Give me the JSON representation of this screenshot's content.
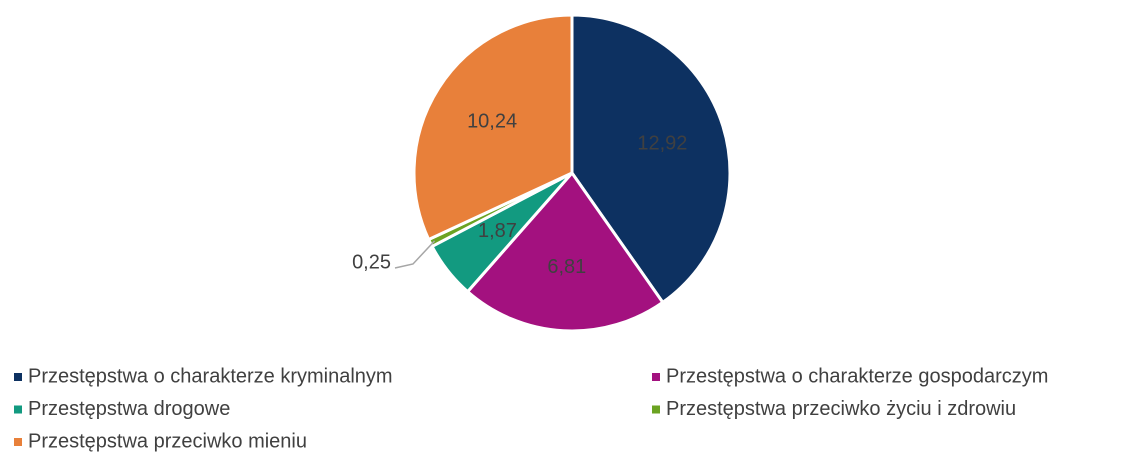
{
  "chart_data": {
    "type": "pie",
    "categories": [
      "Przestępstwa o charakterze kryminalnym",
      "Przestępstwa o charakterze gospodarczym",
      "Przestępstwa drogowe",
      "Przestępstwa przeciwko życiu i zdrowiu",
      "Przestępstwa przeciwko mieniu"
    ],
    "values": [
      12.92,
      6.81,
      1.87,
      0.25,
      10.24
    ],
    "value_labels": [
      "12,92",
      "6,81",
      "1,87",
      "0,25",
      "10,24"
    ],
    "colors": [
      "#0d3161",
      "#a3117f",
      "#129a80",
      "#6ba322",
      "#e8803a"
    ],
    "legend": "bottom"
  }
}
